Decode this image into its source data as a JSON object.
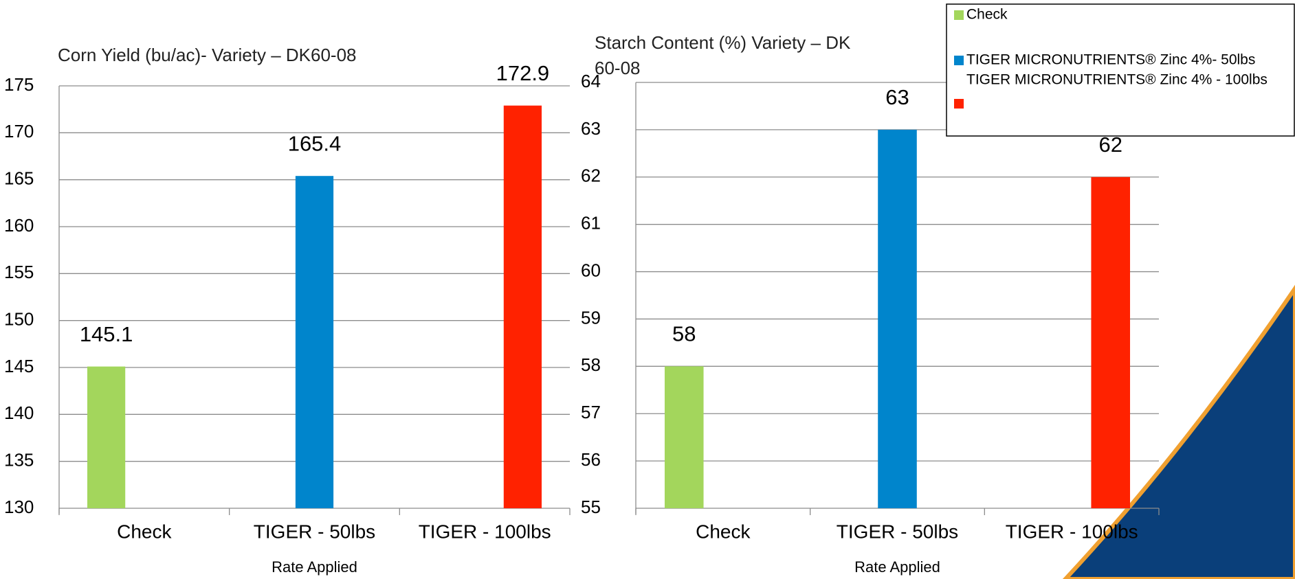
{
  "chart_data": [
    {
      "type": "bar",
      "title": "Corn Yield (bu/ac)- Variety – DK60-08",
      "categories": [
        "Check",
        "TIGER - 50lbs",
        "TIGER - 100lbs"
      ],
      "values": [
        145.1,
        165.4,
        172.9
      ],
      "colors": [
        "#a3d65c",
        "#0085cc",
        "#ff2200"
      ],
      "x_label": "Rate Applied",
      "ylim": [
        130,
        175
      ],
      "yticks": [
        130,
        135,
        140,
        145,
        150,
        155,
        160,
        165,
        170,
        175
      ],
      "grid": true
    },
    {
      "type": "bar",
      "title": "Starch Content (%) Variety – DK60-08",
      "categories": [
        "Check",
        "TIGER - 50lbs",
        "TIGER - 100lbs"
      ],
      "values": [
        58,
        63,
        62
      ],
      "colors": [
        "#a3d65c",
        "#0085cc",
        "#ff2200"
      ],
      "x_label": "Rate Applied",
      "ylim": [
        55,
        64
      ],
      "yticks": [
        55,
        56,
        57,
        58,
        59,
        60,
        61,
        62,
        63,
        64
      ],
      "grid": true
    }
  ],
  "legend": {
    "entries": [
      {
        "name": "Check",
        "color": "#a3d65c"
      },
      {
        "name": "TIGER MICRONUTRIENTS® Zinc 4%- 50lbs",
        "color": "#0085cc"
      },
      {
        "name": "TIGER MICRONUTRIENTS® Zinc 4% - 100lbs",
        "color": "#ff2200"
      }
    ]
  }
}
